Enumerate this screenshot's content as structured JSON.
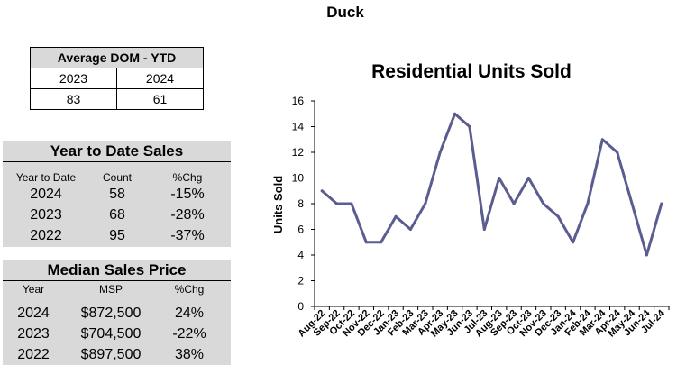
{
  "page_title": "Duck",
  "dom": {
    "header": "Average DOM - YTD",
    "years": [
      "2023",
      "2024"
    ],
    "values": [
      "83",
      "61"
    ]
  },
  "ytd": {
    "title": "Year to Date Sales",
    "columns": [
      "Year to Date",
      "Count",
      "%Chg"
    ],
    "rows": [
      {
        "year": "2024",
        "count": "58",
        "chg": "-15%"
      },
      {
        "year": "2023",
        "count": "68",
        "chg": "-28%"
      },
      {
        "year": "2022",
        "count": "95",
        "chg": "-37%"
      }
    ]
  },
  "msp": {
    "title": "Median Sales Price",
    "columns": [
      "Year",
      "MSP",
      "%Chg"
    ],
    "rows": [
      {
        "year": "2024",
        "price": "$872,500",
        "chg": "24%"
      },
      {
        "year": "2023",
        "price": "$704,500",
        "chg": "-22%"
      },
      {
        "year": "2022",
        "price": "$897,500",
        "chg": "38%"
      }
    ]
  },
  "chart_data": {
    "type": "line",
    "title": "Residential Units Sold",
    "ylabel": "Units Sold",
    "xlabel": "",
    "ylim": [
      0,
      16
    ],
    "yticks": [
      0,
      2,
      4,
      6,
      8,
      10,
      12,
      14,
      16
    ],
    "grid": false,
    "line_color": "#5b5c8f",
    "categories": [
      "Aug-22",
      "Sep-22",
      "Oct-22",
      "Nov-22",
      "Dec-22",
      "Jan-23",
      "Feb-23",
      "Mar-23",
      "Apr-23",
      "May-23",
      "Jun-23",
      "Jul-23",
      "Aug-23",
      "Sep-23",
      "Oct-23",
      "Nov-23",
      "Dec-23",
      "Jan-24",
      "Feb-24",
      "Mar-24",
      "Apr-24",
      "May-24",
      "Jun-24",
      "Jul-24"
    ],
    "values": [
      9,
      8,
      8,
      5,
      5,
      7,
      6,
      8,
      12,
      15,
      14,
      6,
      10,
      8,
      10,
      8,
      7,
      5,
      8,
      13,
      12,
      8,
      4,
      8
    ]
  }
}
